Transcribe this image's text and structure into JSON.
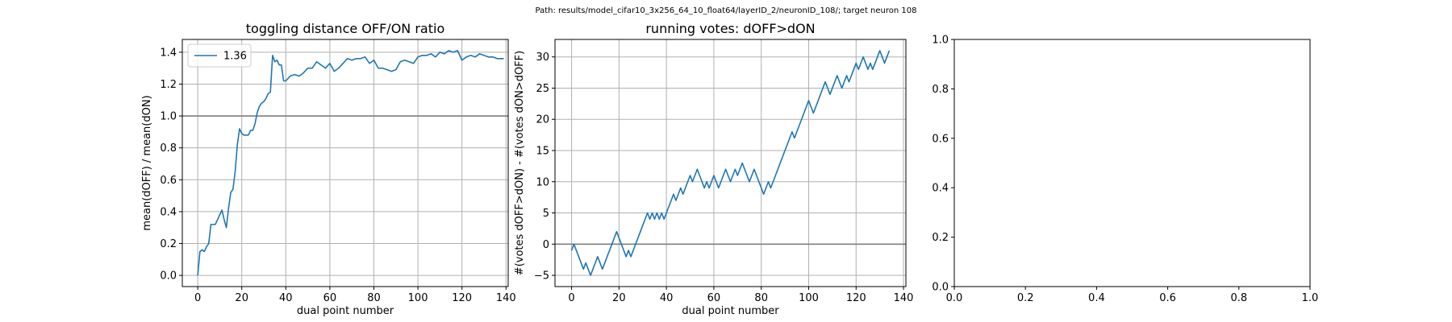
{
  "figure": {
    "suptitle": "Path: results/model_cifar10_3x256_64_10_float64/layerID_2/neuronID_108/; target neuron 108"
  },
  "colors": {
    "line": "#1f77b4",
    "refline": "#7f7f7f",
    "grid": "#b0b0b0",
    "axes": "#000000"
  },
  "chart_data": [
    {
      "type": "line",
      "title": "toggling distance OFF/ON ratio",
      "xlabel": "dual point number",
      "ylabel": "mean(dOFF) / mean(dON)",
      "xlim": [
        -7,
        141
      ],
      "ylim": [
        -0.07,
        1.48
      ],
      "xticks": [
        0,
        20,
        40,
        60,
        80,
        100,
        120,
        140
      ],
      "yticks": [
        0.0,
        0.2,
        0.4,
        0.6,
        0.8,
        1.0,
        1.2,
        1.4
      ],
      "xtick_labels": [
        "0",
        "20",
        "40",
        "60",
        "80",
        "100",
        "120",
        "140"
      ],
      "ytick_labels": [
        "0.0",
        "0.2",
        "0.4",
        "0.6",
        "0.8",
        "1.0",
        "1.2",
        "1.4"
      ],
      "grid": true,
      "legend": {
        "loc": "upper-left",
        "entries": [
          "1.36"
        ]
      },
      "hline": 1.0,
      "series": [
        {
          "name": "1.36",
          "points": [
            [
              0,
              0.0
            ],
            [
              1,
              0.15
            ],
            [
              2,
              0.16
            ],
            [
              3,
              0.15
            ],
            [
              4,
              0.18
            ],
            [
              5,
              0.2
            ],
            [
              6,
              0.32
            ],
            [
              7,
              0.32
            ],
            [
              8,
              0.32
            ],
            [
              9,
              0.35
            ],
            [
              10,
              0.38
            ],
            [
              11,
              0.41
            ],
            [
              12,
              0.35
            ],
            [
              13,
              0.3
            ],
            [
              14,
              0.42
            ],
            [
              15,
              0.52
            ],
            [
              16,
              0.54
            ],
            [
              17,
              0.65
            ],
            [
              18,
              0.82
            ],
            [
              19,
              0.92
            ],
            [
              20,
              0.89
            ],
            [
              21,
              0.88
            ],
            [
              22,
              0.88
            ],
            [
              23,
              0.88
            ],
            [
              24,
              0.91
            ],
            [
              25,
              0.91
            ],
            [
              26,
              0.95
            ],
            [
              27,
              1.02
            ],
            [
              28,
              1.06
            ],
            [
              29,
              1.08
            ],
            [
              30,
              1.09
            ],
            [
              31,
              1.11
            ],
            [
              32,
              1.14
            ],
            [
              33,
              1.15
            ],
            [
              34,
              1.38
            ],
            [
              35,
              1.34
            ],
            [
              36,
              1.35
            ],
            [
              37,
              1.32
            ],
            [
              38,
              1.32
            ],
            [
              39,
              1.22
            ],
            [
              40,
              1.22
            ],
            [
              42,
              1.25
            ],
            [
              44,
              1.26
            ],
            [
              46,
              1.25
            ],
            [
              48,
              1.27
            ],
            [
              50,
              1.3
            ],
            [
              52,
              1.3
            ],
            [
              54,
              1.34
            ],
            [
              56,
              1.32
            ],
            [
              58,
              1.3
            ],
            [
              60,
              1.33
            ],
            [
              62,
              1.28
            ],
            [
              64,
              1.3
            ],
            [
              66,
              1.33
            ],
            [
              68,
              1.36
            ],
            [
              70,
              1.35
            ],
            [
              72,
              1.36
            ],
            [
              74,
              1.36
            ],
            [
              76,
              1.37
            ],
            [
              78,
              1.33
            ],
            [
              80,
              1.35
            ],
            [
              82,
              1.3
            ],
            [
              84,
              1.3
            ],
            [
              86,
              1.29
            ],
            [
              88,
              1.28
            ],
            [
              90,
              1.29
            ],
            [
              92,
              1.34
            ],
            [
              94,
              1.35
            ],
            [
              96,
              1.34
            ],
            [
              98,
              1.33
            ],
            [
              100,
              1.37
            ],
            [
              102,
              1.38
            ],
            [
              104,
              1.38
            ],
            [
              106,
              1.39
            ],
            [
              108,
              1.37
            ],
            [
              110,
              1.4
            ],
            [
              112,
              1.39
            ],
            [
              114,
              1.41
            ],
            [
              116,
              1.4
            ],
            [
              118,
              1.41
            ],
            [
              120,
              1.35
            ],
            [
              122,
              1.37
            ],
            [
              124,
              1.38
            ],
            [
              126,
              1.37
            ],
            [
              128,
              1.39
            ],
            [
              130,
              1.38
            ],
            [
              132,
              1.37
            ],
            [
              134,
              1.37
            ],
            [
              136,
              1.36
            ],
            [
              138,
              1.36
            ],
            [
              139,
              1.36
            ]
          ]
        }
      ]
    },
    {
      "type": "line",
      "title": "running votes: dOFF>dON",
      "xlabel": "dual point number",
      "ylabel": "#(votes dOFF>dON) - #(votes dON>dOFF)",
      "xlim": [
        -7,
        141
      ],
      "ylim": [
        -6.8,
        32.8
      ],
      "xticks": [
        0,
        20,
        40,
        60,
        80,
        100,
        120,
        140
      ],
      "yticks": [
        -5,
        0,
        5,
        10,
        15,
        20,
        25,
        30
      ],
      "xtick_labels": [
        "0",
        "20",
        "40",
        "60",
        "80",
        "100",
        "120",
        "140"
      ],
      "ytick_labels": [
        "−5",
        "0",
        "5",
        "10",
        "15",
        "20",
        "25",
        "30"
      ],
      "grid": true,
      "hline": 0,
      "series": [
        {
          "points": [
            [
              0,
              -1
            ],
            [
              1,
              0
            ],
            [
              2,
              -1
            ],
            [
              3,
              -2
            ],
            [
              4,
              -3
            ],
            [
              5,
              -4
            ],
            [
              6,
              -3
            ],
            [
              7,
              -4
            ],
            [
              8,
              -5
            ],
            [
              9,
              -4
            ],
            [
              10,
              -3
            ],
            [
              11,
              -2
            ],
            [
              12,
              -3
            ],
            [
              13,
              -4
            ],
            [
              14,
              -3
            ],
            [
              15,
              -2
            ],
            [
              16,
              -1
            ],
            [
              17,
              0
            ],
            [
              18,
              1
            ],
            [
              19,
              2
            ],
            [
              20,
              1
            ],
            [
              21,
              0
            ],
            [
              22,
              -1
            ],
            [
              23,
              -2
            ],
            [
              24,
              -1
            ],
            [
              25,
              -2
            ],
            [
              26,
              -1
            ],
            [
              27,
              0
            ],
            [
              28,
              1
            ],
            [
              29,
              2
            ],
            [
              30,
              3
            ],
            [
              31,
              4
            ],
            [
              32,
              5
            ],
            [
              33,
              4
            ],
            [
              34,
              5
            ],
            [
              35,
              4
            ],
            [
              36,
              5
            ],
            [
              37,
              4
            ],
            [
              38,
              5
            ],
            [
              39,
              4
            ],
            [
              40,
              5
            ],
            [
              41,
              6
            ],
            [
              42,
              7
            ],
            [
              43,
              8
            ],
            [
              44,
              7
            ],
            [
              45,
              8
            ],
            [
              46,
              9
            ],
            [
              47,
              8
            ],
            [
              48,
              9
            ],
            [
              49,
              10
            ],
            [
              50,
              11
            ],
            [
              51,
              10
            ],
            [
              52,
              11
            ],
            [
              53,
              12
            ],
            [
              54,
              11
            ],
            [
              55,
              10
            ],
            [
              56,
              9
            ],
            [
              57,
              10
            ],
            [
              58,
              9
            ],
            [
              59,
              10
            ],
            [
              60,
              11
            ],
            [
              61,
              10
            ],
            [
              62,
              9
            ],
            [
              63,
              10
            ],
            [
              64,
              11
            ],
            [
              65,
              12
            ],
            [
              66,
              11
            ],
            [
              67,
              10
            ],
            [
              68,
              11
            ],
            [
              69,
              12
            ],
            [
              70,
              11
            ],
            [
              71,
              12
            ],
            [
              72,
              13
            ],
            [
              73,
              12
            ],
            [
              74,
              11
            ],
            [
              75,
              10
            ],
            [
              76,
              11
            ],
            [
              77,
              12
            ],
            [
              78,
              11
            ],
            [
              79,
              10
            ],
            [
              80,
              9
            ],
            [
              81,
              8
            ],
            [
              82,
              9
            ],
            [
              83,
              10
            ],
            [
              84,
              9
            ],
            [
              85,
              10
            ],
            [
              86,
              11
            ],
            [
              87,
              12
            ],
            [
              88,
              13
            ],
            [
              89,
              14
            ],
            [
              90,
              15
            ],
            [
              91,
              16
            ],
            [
              92,
              17
            ],
            [
              93,
              18
            ],
            [
              94,
              17
            ],
            [
              95,
              18
            ],
            [
              96,
              19
            ],
            [
              97,
              20
            ],
            [
              98,
              21
            ],
            [
              99,
              22
            ],
            [
              100,
              23
            ],
            [
              101,
              22
            ],
            [
              102,
              21
            ],
            [
              103,
              22
            ],
            [
              104,
              23
            ],
            [
              105,
              24
            ],
            [
              106,
              25
            ],
            [
              107,
              26
            ],
            [
              108,
              25
            ],
            [
              109,
              24
            ],
            [
              110,
              25
            ],
            [
              111,
              26
            ],
            [
              112,
              27
            ],
            [
              113,
              26
            ],
            [
              114,
              25
            ],
            [
              115,
              26
            ],
            [
              116,
              27
            ],
            [
              117,
              26
            ],
            [
              118,
              27
            ],
            [
              119,
              28
            ],
            [
              120,
              29
            ],
            [
              121,
              28
            ],
            [
              122,
              29
            ],
            [
              123,
              30
            ],
            [
              124,
              29
            ],
            [
              125,
              28
            ],
            [
              126,
              29
            ],
            [
              127,
              28
            ],
            [
              128,
              29
            ],
            [
              129,
              30
            ],
            [
              130,
              31
            ],
            [
              131,
              30
            ],
            [
              132,
              29
            ],
            [
              133,
              30
            ],
            [
              134,
              31
            ]
          ]
        }
      ]
    },
    {
      "type": "line",
      "title": "",
      "xlabel": "",
      "ylabel": "",
      "xlim": [
        0,
        1
      ],
      "ylim": [
        0,
        1
      ],
      "xticks": [
        0,
        0.2,
        0.4,
        0.6,
        0.8,
        1.0
      ],
      "yticks": [
        0,
        0.2,
        0.4,
        0.6,
        0.8,
        1.0
      ],
      "xtick_labels": [
        "0.0",
        "0.2",
        "0.4",
        "0.6",
        "0.8",
        "1.0"
      ],
      "ytick_labels": [
        "0.0",
        "0.2",
        "0.4",
        "0.6",
        "0.8",
        "1.0"
      ],
      "grid": false,
      "series": []
    }
  ]
}
